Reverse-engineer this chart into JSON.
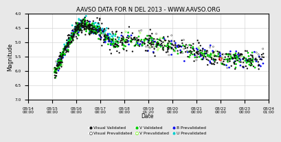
{
  "title": "AAVSO DATA FOR N DEL 2013 - WWW.AAVSO.ORG",
  "ylabel": "Magnitude",
  "xlabel": "Date",
  "ylim": [
    7.0,
    4.0
  ],
  "xlim": [
    0.0,
    10.0
  ],
  "xtick_labels": [
    "08/14\n00:00",
    "08/15\n00:00",
    "08/16\n00:00",
    "08/17\n00:00",
    "08/18\n00:00",
    "08/19\n01:20",
    "08/20\n00:00",
    "08/21\n00:00",
    "08/22\n00:00",
    "08/23\n00:00",
    "08/24\n01:00"
  ],
  "background_color": "#e8e8e8",
  "plot_bg": "#ffffff",
  "grid_color": "#cccccc",
  "title_fontsize": 6.0,
  "axis_fontsize": 5.5,
  "tick_fontsize": 4.2,
  "legend_fontsize": 4.2,
  "colors": {
    "visual_validated": "#111111",
    "visual_prevalidated": "#444444",
    "v_validated": "#00cc00",
    "v_prevalidated": "#66ff00",
    "b_prevalidated": "#1111ee",
    "u_prevalidated": "#00cccc",
    "red_circle": "#ee0000"
  }
}
